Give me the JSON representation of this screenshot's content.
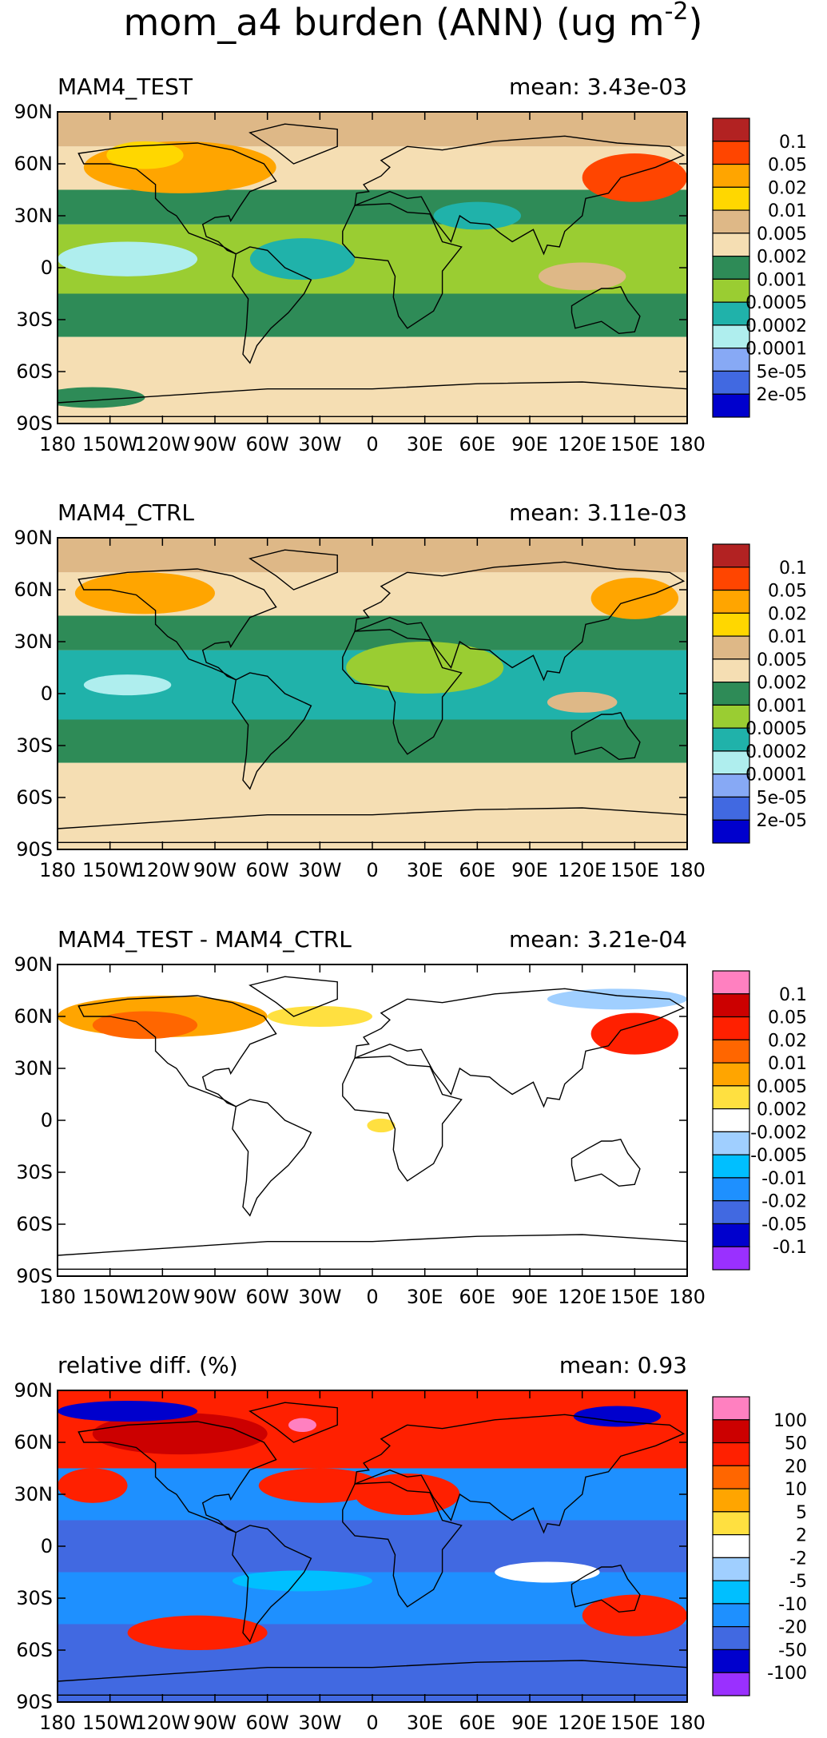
{
  "page_title": "mom_a4 burden (ANN) (ug m",
  "page_title_sup": "-2",
  "page_title_close": ")",
  "chart_data": [
    {
      "type": "heatmap",
      "title": "MAM4_TEST",
      "mean_label": "mean:",
      "mean_value": "3.43e-03",
      "xticks": [
        "180",
        "150W",
        "120W",
        "90W",
        "60W",
        "30W",
        "0",
        "30E",
        "60E",
        "90E",
        "120E",
        "150E",
        "180"
      ],
      "yticks": [
        "90N",
        "60N",
        "30N",
        "0",
        "30S",
        "60S",
        "90S"
      ],
      "xlim": [
        -180,
        180
      ],
      "ylim": [
        -90,
        90
      ],
      "colorbar": {
        "labels": [
          "0.1",
          "0.05",
          "0.02",
          "0.01",
          "0.005",
          "0.002",
          "0.001",
          "0.0005",
          "0.0002",
          "0.0001",
          "5e-05",
          "2e-05"
        ],
        "colors": [
          "#b22222",
          "#ff4500",
          "#ffa500",
          "#ffd700",
          "#deb887",
          "#f5deb3",
          "#2e8b57",
          "#9acd32",
          "#20b2aa",
          "#afeeee",
          "#87a9f5",
          "#4169e1",
          "#0000cd"
        ]
      },
      "zones": [
        {
          "lat": [
            70,
            90
          ],
          "color": "#deb887"
        },
        {
          "lat": [
            45,
            70
          ],
          "color": "#f5deb3"
        },
        {
          "lat": [
            25,
            45
          ],
          "color": "#2e8b57"
        },
        {
          "lat": [
            -15,
            25
          ],
          "color": "#9acd32"
        },
        {
          "lat": [
            -40,
            -15
          ],
          "color": "#2e8b57"
        },
        {
          "lat": [
            -90,
            -40
          ],
          "color": "#f5deb3"
        }
      ],
      "blobs": [
        {
          "lon": -110,
          "lat": 58,
          "rx": 55,
          "ry": 15,
          "color": "#ffa500"
        },
        {
          "lon": -130,
          "lat": 65,
          "rx": 22,
          "ry": 8,
          "color": "#ffd700"
        },
        {
          "lon": 150,
          "lat": 52,
          "rx": 30,
          "ry": 14,
          "color": "#ff4500"
        },
        {
          "lon": -140,
          "lat": 5,
          "rx": 40,
          "ry": 10,
          "color": "#afeeee"
        },
        {
          "lon": -40,
          "lat": 5,
          "rx": 30,
          "ry": 12,
          "color": "#20b2aa"
        },
        {
          "lon": 60,
          "lat": 30,
          "rx": 25,
          "ry": 8,
          "color": "#20b2aa"
        },
        {
          "lon": 120,
          "lat": -5,
          "rx": 25,
          "ry": 8,
          "color": "#deb887"
        },
        {
          "lon": -160,
          "lat": -75,
          "rx": 30,
          "ry": 6,
          "color": "#2e8b57"
        }
      ]
    },
    {
      "type": "heatmap",
      "title": "MAM4_CTRL",
      "mean_label": "mean:",
      "mean_value": "3.11e-03",
      "xticks": [
        "180",
        "150W",
        "120W",
        "90W",
        "60W",
        "30W",
        "0",
        "30E",
        "60E",
        "90E",
        "120E",
        "150E",
        "180"
      ],
      "yticks": [
        "90N",
        "60N",
        "30N",
        "0",
        "30S",
        "60S",
        "90S"
      ],
      "xlim": [
        -180,
        180
      ],
      "ylim": [
        -90,
        90
      ],
      "colorbar": {
        "labels": [
          "0.1",
          "0.05",
          "0.02",
          "0.01",
          "0.005",
          "0.002",
          "0.001",
          "0.0005",
          "0.0002",
          "0.0001",
          "5e-05",
          "2e-05"
        ],
        "colors": [
          "#b22222",
          "#ff4500",
          "#ffa500",
          "#ffd700",
          "#deb887",
          "#f5deb3",
          "#2e8b57",
          "#9acd32",
          "#20b2aa",
          "#afeeee",
          "#87a9f5",
          "#4169e1",
          "#0000cd"
        ]
      },
      "zones": [
        {
          "lat": [
            70,
            90
          ],
          "color": "#deb887"
        },
        {
          "lat": [
            45,
            70
          ],
          "color": "#f5deb3"
        },
        {
          "lat": [
            25,
            45
          ],
          "color": "#2e8b57"
        },
        {
          "lat": [
            -15,
            25
          ],
          "color": "#20b2aa"
        },
        {
          "lat": [
            -40,
            -15
          ],
          "color": "#2e8b57"
        },
        {
          "lat": [
            -90,
            -40
          ],
          "color": "#f5deb3"
        }
      ],
      "blobs": [
        {
          "lon": -130,
          "lat": 58,
          "rx": 40,
          "ry": 12,
          "color": "#ffa500"
        },
        {
          "lon": 150,
          "lat": 55,
          "rx": 25,
          "ry": 12,
          "color": "#ffa500"
        },
        {
          "lon": -140,
          "lat": 5,
          "rx": 25,
          "ry": 6,
          "color": "#afeeee"
        },
        {
          "lon": 30,
          "lat": 15,
          "rx": 45,
          "ry": 15,
          "color": "#9acd32"
        },
        {
          "lon": 120,
          "lat": -5,
          "rx": 20,
          "ry": 6,
          "color": "#deb887"
        }
      ]
    },
    {
      "type": "heatmap",
      "title": "MAM4_TEST - MAM4_CTRL",
      "mean_label": "mean:",
      "mean_value": "3.21e-04",
      "xticks": [
        "180",
        "150W",
        "120W",
        "90W",
        "60W",
        "30W",
        "0",
        "30E",
        "60E",
        "90E",
        "120E",
        "150E",
        "180"
      ],
      "yticks": [
        "90N",
        "60N",
        "30N",
        "0",
        "30S",
        "60S",
        "90S"
      ],
      "xlim": [
        -180,
        180
      ],
      "ylim": [
        -90,
        90
      ],
      "colorbar": {
        "labels": [
          "0.1",
          "0.05",
          "0.02",
          "0.01",
          "0.005",
          "0.002",
          "-0.002",
          "-0.005",
          "-0.01",
          "-0.02",
          "-0.05",
          "-0.1"
        ],
        "colors": [
          "#ff80c0",
          "#cc0000",
          "#ff2000",
          "#ff6600",
          "#ffa500",
          "#ffe040",
          "#ffffff",
          "#a0cfff",
          "#00bfff",
          "#1e90ff",
          "#4169e1",
          "#0000cd",
          "#9a30ff"
        ]
      },
      "zones": [
        {
          "lat": [
            -90,
            90
          ],
          "color": "#ffffff"
        }
      ],
      "blobs": [
        {
          "lon": -120,
          "lat": 60,
          "rx": 60,
          "ry": 12,
          "color": "#ffa500"
        },
        {
          "lon": -130,
          "lat": 55,
          "rx": 30,
          "ry": 8,
          "color": "#ff6600"
        },
        {
          "lon": -30,
          "lat": 60,
          "rx": 30,
          "ry": 6,
          "color": "#ffe040"
        },
        {
          "lon": 150,
          "lat": 50,
          "rx": 25,
          "ry": 12,
          "color": "#ff2000"
        },
        {
          "lon": 140,
          "lat": 70,
          "rx": 40,
          "ry": 6,
          "color": "#a0cfff"
        },
        {
          "lon": 5,
          "lat": -3,
          "rx": 8,
          "ry": 4,
          "color": "#ffe040"
        }
      ]
    },
    {
      "type": "heatmap",
      "title": "relative diff. (%)",
      "mean_label": "mean:",
      "mean_value": "0.93",
      "xticks": [
        "180",
        "150W",
        "120W",
        "90W",
        "60W",
        "30W",
        "0",
        "30E",
        "60E",
        "90E",
        "120E",
        "150E",
        "180"
      ],
      "yticks": [
        "90N",
        "60N",
        "30N",
        "0",
        "30S",
        "60S",
        "90S"
      ],
      "xlim": [
        -180,
        180
      ],
      "ylim": [
        -90,
        90
      ],
      "colorbar": {
        "labels": [
          "100",
          "50",
          "20",
          "10",
          "5",
          "2",
          "-2",
          "-5",
          "-10",
          "-20",
          "-50",
          "-100"
        ],
        "colors": [
          "#ff80c0",
          "#cc0000",
          "#ff2000",
          "#ff6600",
          "#ffa500",
          "#ffe040",
          "#ffffff",
          "#a0cfff",
          "#00bfff",
          "#1e90ff",
          "#4169e1",
          "#0000cd",
          "#9a30ff"
        ]
      },
      "zones": [
        {
          "lat": [
            45,
            90
          ],
          "color": "#ff2000"
        },
        {
          "lat": [
            15,
            45
          ],
          "color": "#1e90ff"
        },
        {
          "lat": [
            -15,
            15
          ],
          "color": "#4169e1"
        },
        {
          "lat": [
            -45,
            -15
          ],
          "color": "#1e90ff"
        },
        {
          "lat": [
            -90,
            -45
          ],
          "color": "#4169e1"
        }
      ],
      "blobs": [
        {
          "lon": -110,
          "lat": 65,
          "rx": 50,
          "ry": 12,
          "color": "#cc0000"
        },
        {
          "lon": -140,
          "lat": 78,
          "rx": 40,
          "ry": 6,
          "color": "#0000cd"
        },
        {
          "lon": -30,
          "lat": 35,
          "rx": 35,
          "ry": 10,
          "color": "#ff2000"
        },
        {
          "lon": 20,
          "lat": 30,
          "rx": 30,
          "ry": 12,
          "color": "#ff2000"
        },
        {
          "lon": -100,
          "lat": -50,
          "rx": 40,
          "ry": 10,
          "color": "#ff2000"
        },
        {
          "lon": 150,
          "lat": -40,
          "rx": 30,
          "ry": 12,
          "color": "#ff2000"
        },
        {
          "lon": -160,
          "lat": 35,
          "rx": 20,
          "ry": 10,
          "color": "#ff2000"
        },
        {
          "lon": 100,
          "lat": -15,
          "rx": 30,
          "ry": 6,
          "color": "#ffffff"
        },
        {
          "lon": -40,
          "lat": -20,
          "rx": 40,
          "ry": 6,
          "color": "#00bfff"
        },
        {
          "lon": 140,
          "lat": 75,
          "rx": 25,
          "ry": 6,
          "color": "#0000cd"
        },
        {
          "lon": -40,
          "lat": 70,
          "rx": 8,
          "ry": 4,
          "color": "#ff80c0"
        }
      ]
    }
  ]
}
